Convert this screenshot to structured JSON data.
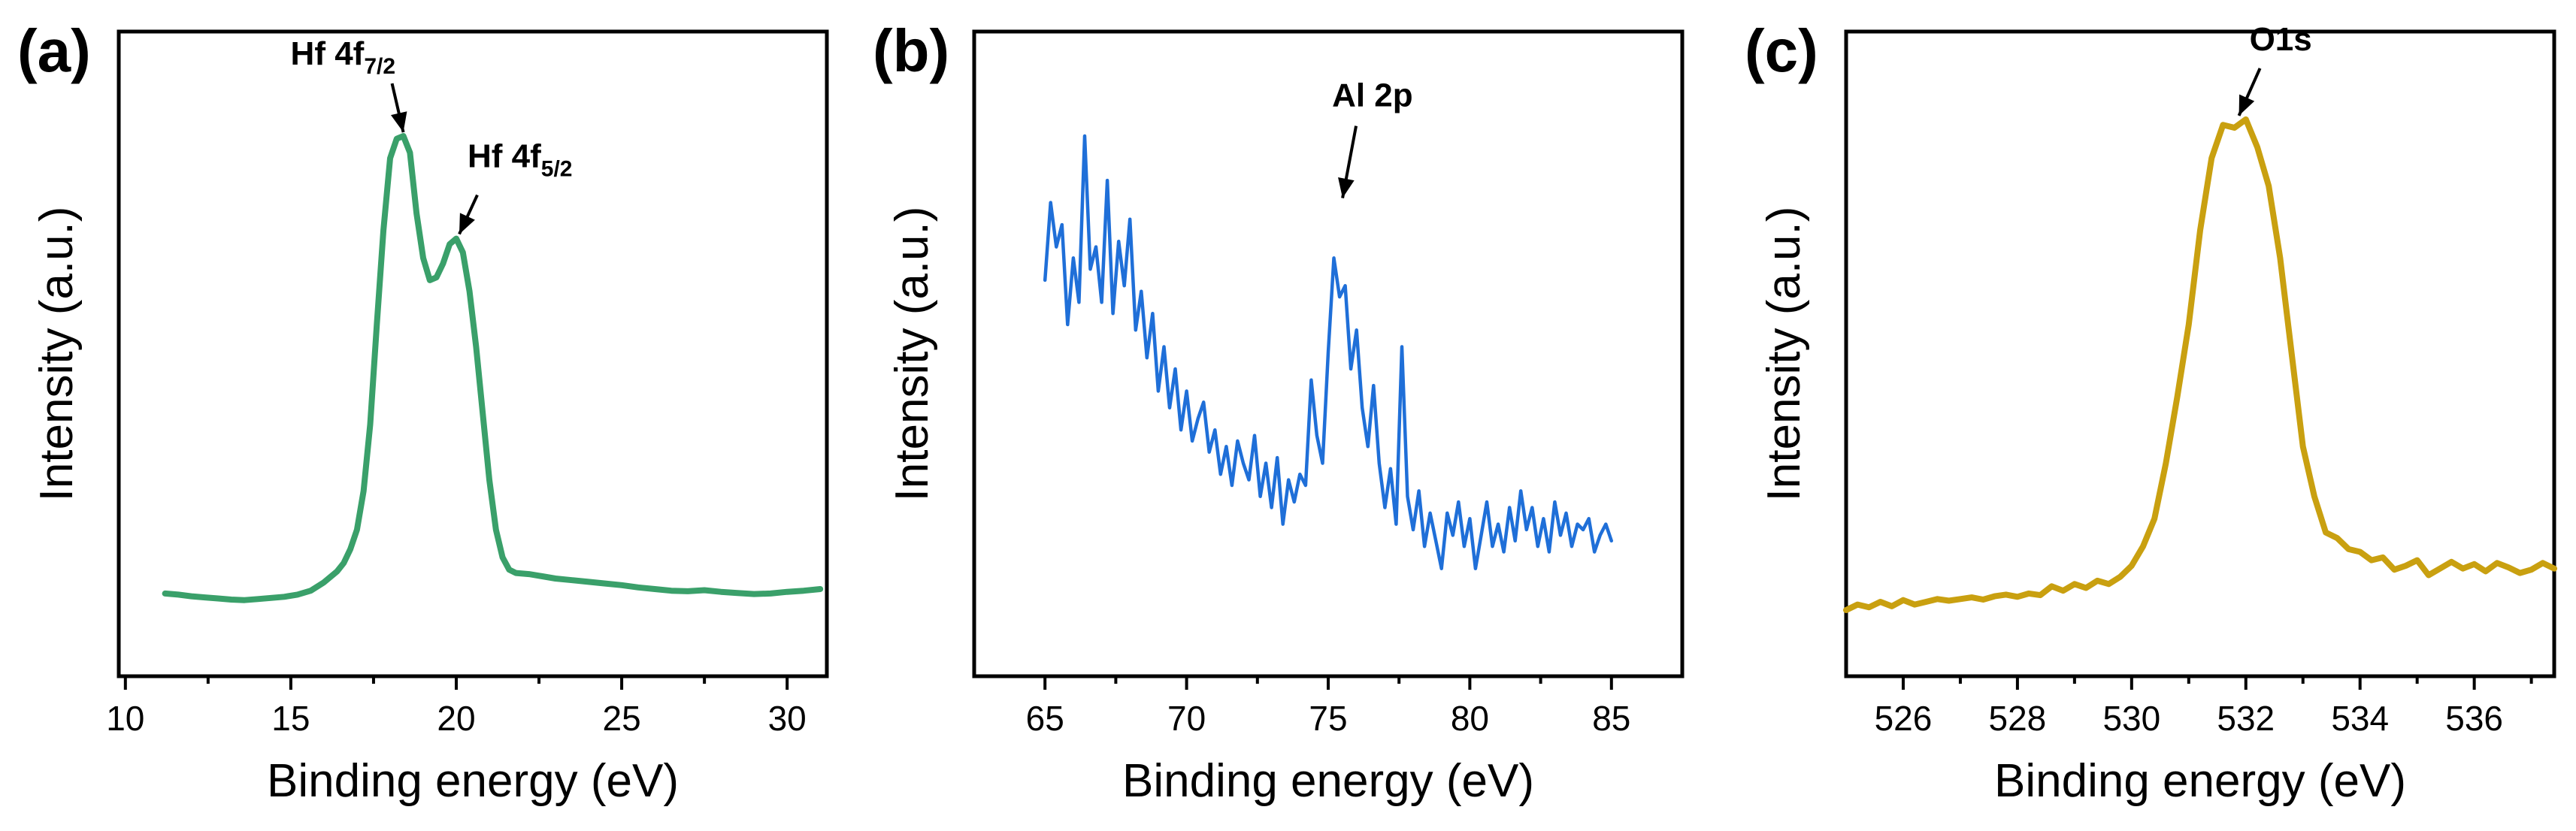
{
  "chart_data": [
    {
      "type": "line",
      "panel_label": "(a)",
      "xlabel": "Binding energy (eV)",
      "ylabel": "Intensity (a.u.)",
      "xlim": [
        9.8,
        31.2
      ],
      "ylim": [
        0,
        100
      ],
      "xticks": [
        10,
        15,
        20,
        25,
        30
      ],
      "xtick_labels": [
        "10",
        "15",
        "20",
        "25",
        "30"
      ],
      "y_tick_labels_shown": false,
      "series": [
        {
          "name": "Hf 4f",
          "color": "#3aa06a",
          "x": [
            11.2,
            11.6,
            12.0,
            12.4,
            12.8,
            13.2,
            13.6,
            14.0,
            14.4,
            14.8,
            15.2,
            15.6,
            16.0,
            16.4,
            16.6,
            16.8,
            17.0,
            17.2,
            17.4,
            17.6,
            17.8,
            18.0,
            18.2,
            18.4,
            18.6,
            18.8,
            19.0,
            19.2,
            19.4,
            19.6,
            19.8,
            20.0,
            20.2,
            20.4,
            20.6,
            20.8,
            21.0,
            21.2,
            21.4,
            21.6,
            21.8,
            22.2,
            22.6,
            23.0,
            23.5,
            24.0,
            24.5,
            25.0,
            25.5,
            26.0,
            26.5,
            27.0,
            27.5,
            28.0,
            28.5,
            29.0,
            29.5,
            30.0,
            30.5,
            31.0
          ],
          "values": [
            9.5,
            9.3,
            9.0,
            8.8,
            8.6,
            8.4,
            8.3,
            8.5,
            8.7,
            8.9,
            9.3,
            10.0,
            11.5,
            13.5,
            15.0,
            17.5,
            21.0,
            28.0,
            40.0,
            58.0,
            75.0,
            88.0,
            91.5,
            92.0,
            89.0,
            78.0,
            70.0,
            66.0,
            66.5,
            69.0,
            72.5,
            73.5,
            71.0,
            64.0,
            54.0,
            42.0,
            30.0,
            21.0,
            16.0,
            13.8,
            13.2,
            13.0,
            12.6,
            12.2,
            11.9,
            11.6,
            11.3,
            11.0,
            10.6,
            10.3,
            10.0,
            9.9,
            10.1,
            9.8,
            9.6,
            9.4,
            9.5,
            9.8,
            10.0,
            10.3
          ]
        }
      ],
      "annotations": [
        {
          "text": "Hf 4f",
          "subscript": "7/2",
          "x": 18.4,
          "y": 92.0
        },
        {
          "text": "Hf 4f",
          "subscript": "5/2",
          "x": 20.0,
          "y": 73.5
        }
      ]
    },
    {
      "type": "line",
      "panel_label": "(b)",
      "xlabel": "Binding energy (eV)",
      "ylabel": "Intensity (a.u.)",
      "xlim": [
        62.5,
        87.5
      ],
      "ylim": [
        0,
        100
      ],
      "xticks": [
        65,
        70,
        75,
        80,
        85
      ],
      "xtick_labels": [
        "65",
        "70",
        "75",
        "80",
        "85"
      ],
      "y_tick_labels_shown": false,
      "series": [
        {
          "name": "Al 2p",
          "color": "#1f6fd8",
          "x": [
            65.0,
            65.2,
            65.4,
            65.6,
            65.8,
            66.0,
            66.2,
            66.4,
            66.6,
            66.8,
            67.0,
            67.2,
            67.4,
            67.6,
            67.8,
            68.0,
            68.2,
            68.4,
            68.6,
            68.8,
            69.0,
            69.2,
            69.4,
            69.6,
            69.8,
            70.0,
            70.2,
            70.4,
            70.6,
            70.8,
            71.0,
            71.2,
            71.4,
            71.6,
            71.8,
            72.0,
            72.2,
            72.4,
            72.6,
            72.8,
            73.0,
            73.2,
            73.4,
            73.6,
            73.8,
            74.0,
            74.2,
            74.4,
            74.6,
            74.8,
            75.0,
            75.2,
            75.4,
            75.6,
            75.8,
            76.0,
            76.2,
            76.4,
            76.6,
            76.8,
            77.0,
            77.2,
            77.4,
            77.6,
            77.8,
            78.0,
            78.2,
            78.4,
            78.6,
            78.8,
            79.0,
            79.2,
            79.4,
            79.6,
            79.8,
            80.0,
            80.2,
            80.4,
            80.6,
            80.8,
            81.0,
            81.2,
            81.4,
            81.6,
            81.8,
            82.0,
            82.2,
            82.4,
            82.6,
            82.8,
            83.0,
            83.2,
            83.4,
            83.6,
            83.8,
            84.0,
            84.2,
            84.4,
            84.6,
            84.8,
            85.0
          ],
          "values": [
            66,
            80,
            72,
            76,
            58,
            70,
            62,
            92,
            68,
            72,
            62,
            84,
            60,
            73,
            65,
            77,
            57,
            64,
            52,
            60,
            46,
            54,
            43,
            50,
            39,
            46,
            37,
            41,
            44,
            35,
            39,
            31,
            36,
            29,
            37,
            33,
            30,
            38,
            27,
            33,
            25,
            34,
            22,
            30,
            26,
            31,
            29,
            48,
            38,
            33,
            53,
            70,
            63,
            65,
            50,
            57,
            43,
            36,
            47,
            33,
            25,
            32,
            22,
            54,
            27,
            21,
            28,
            18,
            24,
            19,
            14,
            24,
            20,
            26,
            18,
            23,
            14,
            20,
            26,
            18,
            22,
            17,
            25,
            19,
            28,
            21,
            25,
            18,
            23,
            17,
            26,
            20,
            24,
            18,
            22,
            21,
            23,
            17,
            20,
            22,
            19
          ]
        }
      ],
      "annotations": [
        {
          "text": "Al 2p",
          "x": 75.4,
          "y": 80.0
        }
      ]
    },
    {
      "type": "line",
      "panel_label": "(c)",
      "xlabel": "Binding energy (eV)",
      "ylabel": "Intensity (a.u.)",
      "xlim": [
        525.0,
        537.4
      ],
      "ylim": [
        0,
        100
      ],
      "xticks": [
        526,
        528,
        530,
        532,
        534,
        536
      ],
      "xtick_labels": [
        "526",
        "528",
        "530",
        "532",
        "534",
        "536"
      ],
      "y_tick_labels_shown": false,
      "series": [
        {
          "name": "O1s",
          "color": "#c9a010",
          "x": [
            525.0,
            525.2,
            525.4,
            525.6,
            525.8,
            526.0,
            526.2,
            526.4,
            526.6,
            526.8,
            527.0,
            527.2,
            527.4,
            527.6,
            527.8,
            528.0,
            528.2,
            528.4,
            528.6,
            528.8,
            529.0,
            529.2,
            529.4,
            529.6,
            529.8,
            530.0,
            530.2,
            530.4,
            530.6,
            530.8,
            531.0,
            531.2,
            531.4,
            531.6,
            531.8,
            532.0,
            532.2,
            532.4,
            532.6,
            532.8,
            533.0,
            533.2,
            533.4,
            533.6,
            533.8,
            534.0,
            534.2,
            534.4,
            534.6,
            534.8,
            535.0,
            535.2,
            535.4,
            535.6,
            535.8,
            536.0,
            536.2,
            536.4,
            536.6,
            536.8,
            537.0,
            537.2,
            537.4
          ],
          "values": [
            6.5,
            7.5,
            7.0,
            8.0,
            7.2,
            8.3,
            7.5,
            8.0,
            8.5,
            8.2,
            8.5,
            8.8,
            8.4,
            9.0,
            9.3,
            8.9,
            9.5,
            9.2,
            10.8,
            10.0,
            11.2,
            10.5,
            11.8,
            11.2,
            12.5,
            14.5,
            18.0,
            23.0,
            33.0,
            45.0,
            58.0,
            75.0,
            88.0,
            94.0,
            93.5,
            95.0,
            90.0,
            83.0,
            70.0,
            53.0,
            36.0,
            27.0,
            20.5,
            19.5,
            17.5,
            17.0,
            15.5,
            16.0,
            13.8,
            14.5,
            15.5,
            12.8,
            14.0,
            15.2,
            14.0,
            14.8,
            13.5,
            15.0,
            14.2,
            13.2,
            13.8,
            15.0,
            14.0
          ]
        }
      ],
      "annotations": [
        {
          "text": "O1s",
          "x": 531.8,
          "y": 95.0
        }
      ]
    }
  ]
}
